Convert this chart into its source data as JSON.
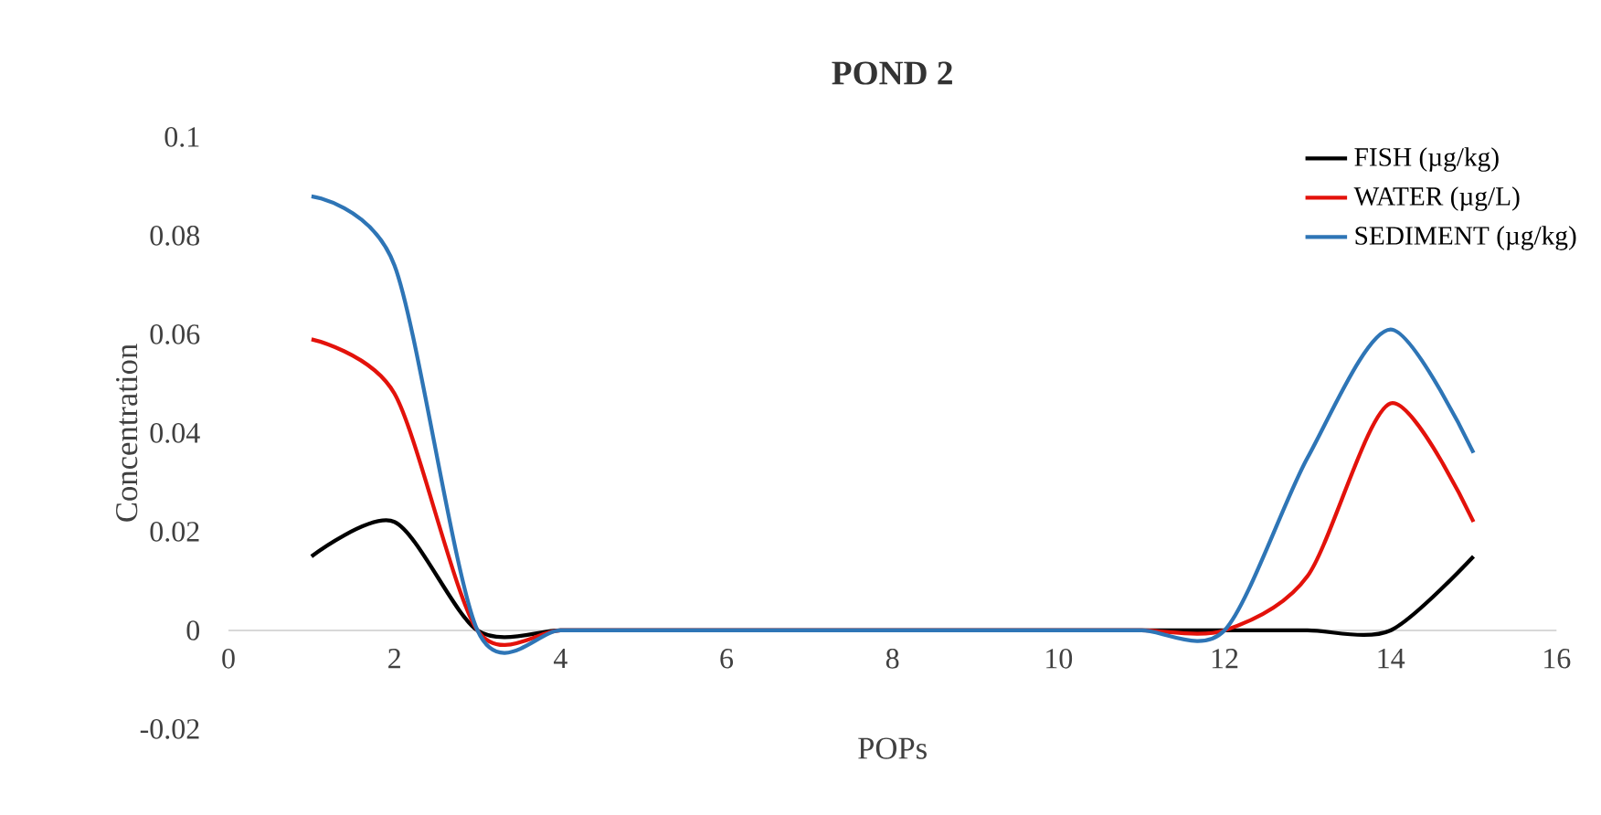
{
  "chart_data": {
    "type": "line",
    "title": "POND 2",
    "xlabel": "POPs",
    "ylabel": "Concentration",
    "x": [
      1,
      2,
      3,
      4,
      5,
      6,
      7,
      8,
      9,
      10,
      11,
      12,
      13,
      14,
      15
    ],
    "series": [
      {
        "name": "FISH (µg/kg)",
        "color": "#000000",
        "values": [
          0.015,
          0.022,
          0,
          0,
          0,
          0,
          0,
          0,
          0,
          0,
          0,
          0,
          0,
          0,
          0.015
        ]
      },
      {
        "name": "WATER (µg/L)",
        "color": "#e3120b",
        "values": [
          0.059,
          0.048,
          0,
          0,
          0,
          0,
          0,
          0,
          0,
          0,
          0,
          0,
          0.011,
          0.046,
          0.022
        ]
      },
      {
        "name": "SEDIMENT (µg/kg)",
        "color": "#2e75b6",
        "values": [
          0.088,
          0.074,
          0,
          0,
          0,
          0,
          0,
          0,
          0,
          0,
          0,
          0,
          0.035,
          0.061,
          0.036
        ]
      }
    ],
    "xlim": [
      0,
      16
    ],
    "xticks": [
      0,
      2,
      4,
      6,
      8,
      10,
      12,
      14,
      16
    ],
    "ylim": [
      -0.02,
      0.1
    ],
    "yticks": [
      -0.02,
      0,
      0.02,
      0.04,
      0.06,
      0.08,
      0.1
    ],
    "legend": "top right",
    "marker": "none",
    "line_style": "solid"
  }
}
